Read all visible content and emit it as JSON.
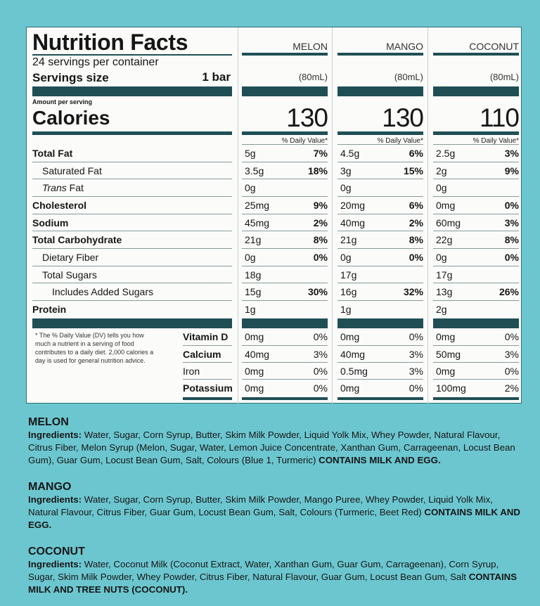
{
  "panel": {
    "title": "Nutrition Facts",
    "servings_per_container": "24 servings per container",
    "serving_size_label": "Servings size",
    "serving_size_value": "1 bar",
    "amount_per_serving": "Amount per serving",
    "calories_label": "Calories",
    "dv_header": "% Daily Value*",
    "footnote": "* The % Daily Value (DV) tells you how much a nutrient in a serving of food contributes to a daily diet. 2,000 calories a day is used for general nutrition advice.",
    "nutrient_labels": [
      "Total Fat",
      "Saturated Fat",
      "Trans Fat",
      "Cholesterol",
      "Sodium",
      "Total Carbohydrate",
      "Dietary Fiber",
      "Total Sugars",
      "Includes Added Sugars",
      "Protein"
    ],
    "vitamin_labels": [
      "Vitamin D",
      "Calcium",
      "Iron",
      "Potassium"
    ],
    "flavors": [
      {
        "name": "MELON",
        "serving": "(80mL)",
        "calories": "130",
        "nutrients": [
          [
            "5g",
            "7%"
          ],
          [
            "3.5g",
            "18%"
          ],
          [
            "0g",
            ""
          ],
          [
            "25mg",
            "9%"
          ],
          [
            "45mg",
            "2%"
          ],
          [
            "21g",
            "8%"
          ],
          [
            "0g",
            "0%"
          ],
          [
            "18g",
            ""
          ],
          [
            "15g",
            "30%"
          ],
          [
            "1g",
            ""
          ]
        ],
        "vitamins": [
          [
            "0mg",
            "0%"
          ],
          [
            "40mg",
            "3%"
          ],
          [
            "0mg",
            "0%"
          ],
          [
            "0mg",
            "0%"
          ]
        ]
      },
      {
        "name": "MANGO",
        "serving": "(80mL)",
        "calories": "130",
        "nutrients": [
          [
            "4.5g",
            "6%"
          ],
          [
            "3g",
            "15%"
          ],
          [
            "0g",
            ""
          ],
          [
            "20mg",
            "6%"
          ],
          [
            "40mg",
            "2%"
          ],
          [
            "21g",
            "8%"
          ],
          [
            "0g",
            "0%"
          ],
          [
            "17g",
            ""
          ],
          [
            "16g",
            "32%"
          ],
          [
            "1g",
            ""
          ]
        ],
        "vitamins": [
          [
            "0mg",
            "0%"
          ],
          [
            "40mg",
            "3%"
          ],
          [
            "0.5mg",
            "3%"
          ],
          [
            "0mg",
            "0%"
          ]
        ]
      },
      {
        "name": "COCONUT",
        "serving": "(80mL)",
        "calories": "110",
        "nutrients": [
          [
            "2.5g",
            "3%"
          ],
          [
            "2g",
            "9%"
          ],
          [
            "0g",
            ""
          ],
          [
            "0mg",
            "0%"
          ],
          [
            "60mg",
            "3%"
          ],
          [
            "22g",
            "8%"
          ],
          [
            "0g",
            "0%"
          ],
          [
            "17g",
            ""
          ],
          [
            "13g",
            "26%"
          ],
          [
            "2g",
            ""
          ]
        ],
        "vitamins": [
          [
            "0mg",
            "0%"
          ],
          [
            "50mg",
            "3%"
          ],
          [
            "0mg",
            "0%"
          ],
          [
            "100mg",
            "2%"
          ]
        ]
      }
    ]
  },
  "ingredients": [
    {
      "name": "MELON",
      "label": "Ingredients:",
      "text": " Water, Sugar, Corn Syrup, Butter, Skim Milk Powder, Liquid Yolk Mix, Whey Powder, Natural Flavour, Citrus Fiber, Melon Syrup (Melon, Sugar, Water, Lemon Juice Concentrate, Xanthan Gum, Carrageenan, Locust Bean Gum), Guar Gum, Locust Bean Gum, Salt, Colours (Blue 1, Turmeric) ",
      "contains": "CONTAINS MILK AND EGG."
    },
    {
      "name": "MANGO",
      "label": "Ingredients:",
      "text": " Water, Sugar, Corn Syrup, Butter, Skim Milk Powder, Mango Puree, Whey Powder, Liquid Yolk Mix, Natural Flavour, Citrus Fiber, Guar Gum, Locust Bean Gum, Salt, Colours (Turmeric, Beet Red) ",
      "contains": "CONTAINS MILK AND EGG."
    },
    {
      "name": "COCONUT",
      "label": "Ingredients:",
      "text": " Water, Coconut Milk (Coconut Extract, Water, Xanthan Gum, Guar Gum, Carrageenan), Corn Syrup, Sugar, Skim Milk Powder, Whey Powder, Citrus Fiber, Natural Flavour, Guar Gum, Locust Bean Gum, Salt ",
      "contains": "CONTAINS MILK AND TREE NUTS (COCONUT)."
    }
  ],
  "colors": {
    "background": "#6cc6cf",
    "label_bar": "#1f4f55",
    "panel": "#fbfbfa"
  }
}
